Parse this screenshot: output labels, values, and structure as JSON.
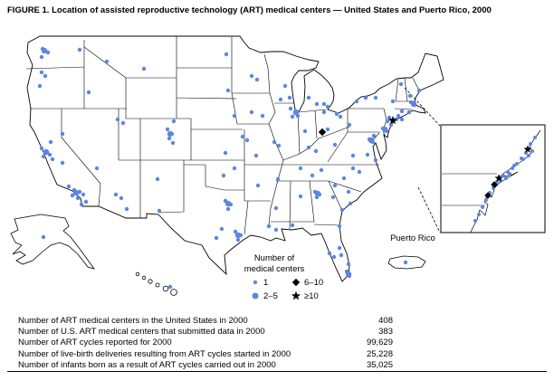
{
  "figure": {
    "title": "FIGURE 1. Location of assisted reproductive technology (ART) medical centers — United States and Puerto Rico, 2000"
  },
  "map": {
    "puerto_rico_label": "Puerto Rico",
    "marker_color": "#5b87e1",
    "symbol_color": "#000000",
    "legend": {
      "title_line1": "Number of",
      "title_line2": "medical centers",
      "items": [
        {
          "symbol": "dot-small",
          "label": "1"
        },
        {
          "symbol": "dot-large",
          "label": "2–5"
        },
        {
          "symbol": "diamond",
          "label": "6–10"
        },
        {
          "symbol": "star",
          "label": "≥10"
        }
      ]
    },
    "markers": {
      "dots": [
        [
          47,
          54
        ],
        [
          53,
          58
        ],
        [
          46,
          63
        ],
        [
          88,
          55
        ],
        [
          46,
          80
        ],
        [
          50,
          84
        ],
        [
          44,
          95
        ],
        [
          98,
          102
        ],
        [
          118,
          68
        ],
        [
          159,
          76
        ],
        [
          46,
          164
        ],
        [
          52,
          168
        ],
        [
          48,
          173
        ],
        [
          55,
          171
        ],
        [
          58,
          176
        ],
        [
          56,
          157
        ],
        [
          69,
          148
        ],
        [
          69,
          180
        ],
        [
          76,
          206
        ],
        [
          82,
          210
        ],
        [
          88,
          212
        ],
        [
          80,
          216
        ],
        [
          86,
          219
        ],
        [
          92,
          215
        ],
        [
          90,
          226
        ],
        [
          95,
          223
        ],
        [
          107,
          186
        ],
        [
          128,
          215
        ],
        [
          134,
          219
        ],
        [
          140,
          231
        ],
        [
          130,
          132
        ],
        [
          136,
          136
        ],
        [
          185,
          143
        ],
        [
          190,
          148
        ],
        [
          187,
          153
        ],
        [
          191,
          158
        ],
        [
          174,
          198
        ],
        [
          176,
          233
        ],
        [
          192,
          134
        ],
        [
          250,
          60
        ],
        [
          252,
          100
        ],
        [
          259,
          128
        ],
        [
          278,
          84
        ],
        [
          284,
          88
        ],
        [
          278,
          124
        ],
        [
          290,
          128
        ],
        [
          268,
          151
        ],
        [
          273,
          155
        ],
        [
          303,
          157
        ],
        [
          308,
          161
        ],
        [
          283,
          172
        ],
        [
          249,
          169
        ],
        [
          247,
          194
        ],
        [
          259,
          186
        ],
        [
          249,
          222
        ],
        [
          255,
          226
        ],
        [
          252,
          231
        ],
        [
          245,
          253
        ],
        [
          239,
          263
        ],
        [
          260,
          256
        ],
        [
          266,
          260
        ],
        [
          263,
          265
        ],
        [
          285,
          205
        ],
        [
          297,
          250
        ],
        [
          305,
          254
        ],
        [
          305,
          230
        ],
        [
          332,
          217
        ],
        [
          323,
          249
        ],
        [
          307,
          198
        ],
        [
          332,
          186
        ],
        [
          345,
          194
        ],
        [
          355,
          188
        ],
        [
          341,
          163
        ],
        [
          349,
          167
        ],
        [
          310,
          110
        ],
        [
          320,
          108
        ],
        [
          315,
          95
        ],
        [
          321,
          120
        ],
        [
          326,
          125
        ],
        [
          323,
          129
        ],
        [
          329,
          128
        ],
        [
          337,
          145
        ],
        [
          341,
          108
        ],
        [
          350,
          115
        ],
        [
          358,
          115
        ],
        [
          362,
          118
        ],
        [
          358,
          124
        ],
        [
          372,
          126
        ],
        [
          376,
          129
        ],
        [
          362,
          143
        ],
        [
          386,
          138
        ],
        [
          423,
          142
        ],
        [
          427,
          145
        ],
        [
          394,
          112
        ],
        [
          404,
          108
        ],
        [
          415,
          108
        ],
        [
          434,
          112
        ],
        [
          430,
          130
        ],
        [
          438,
          132
        ],
        [
          428,
          134
        ],
        [
          432,
          138
        ],
        [
          444,
          132
        ],
        [
          413,
          150
        ],
        [
          408,
          154
        ],
        [
          412,
          157
        ],
        [
          406,
          171
        ],
        [
          415,
          177
        ],
        [
          390,
          172
        ],
        [
          370,
          160
        ],
        [
          397,
          190
        ],
        [
          380,
          197
        ],
        [
          390,
          186
        ],
        [
          370,
          205
        ],
        [
          385,
          212
        ],
        [
          387,
          225
        ],
        [
          348,
          212
        ],
        [
          353,
          215
        ],
        [
          350,
          218
        ],
        [
          368,
          218
        ],
        [
          378,
          232
        ],
        [
          375,
          250
        ],
        [
          375,
          274
        ],
        [
          364,
          280
        ],
        [
          369,
          284
        ],
        [
          383,
          300
        ],
        [
          386,
          305
        ],
        [
          385,
          292
        ],
        [
          377,
          282
        ],
        [
          454,
          113
        ],
        [
          458,
          116
        ],
        [
          444,
          123
        ],
        [
          452,
          124
        ],
        [
          440,
          128
        ],
        [
          463,
          100
        ],
        [
          443,
          93
        ],
        [
          453,
          106
        ],
        [
          48,
          262
        ],
        [
          188,
          317
        ],
        [
          448,
          290
        ]
      ],
      "large_dots": [
        [
          84,
          213
        ],
        [
          51,
          168
        ],
        [
          327,
          124
        ],
        [
          252,
          225
        ],
        [
          263,
          260
        ],
        [
          351,
          214
        ],
        [
          410,
          155
        ],
        [
          425,
          143
        ],
        [
          457,
          115
        ],
        [
          49,
          56
        ],
        [
          188,
          148
        ],
        [
          385,
          303
        ]
      ],
      "diamonds": [
        [
          356,
          146
        ]
      ],
      "stars": [
        [
          434,
          133
        ]
      ]
    },
    "inset": {
      "dots": [
        [
          591,
          152
        ],
        [
          586,
          159
        ],
        [
          581,
          169
        ],
        [
          576,
          175
        ],
        [
          571,
          181
        ],
        [
          566,
          186
        ],
        [
          561,
          190
        ],
        [
          556,
          194
        ],
        [
          549,
          201
        ],
        [
          545,
          208
        ],
        [
          541,
          213
        ],
        [
          537,
          221
        ],
        [
          533,
          229
        ],
        [
          529,
          237
        ],
        [
          525,
          244
        ],
        [
          559,
          197
        ],
        [
          563,
          192
        ],
        [
          588,
          167
        ],
        [
          584,
          172
        ],
        [
          578,
          176
        ],
        [
          568,
          183
        ],
        [
          553,
          199
        ]
      ],
      "diamonds": [
        [
          546,
          204
        ],
        [
          539,
          216
        ]
      ],
      "stars": [
        [
          583,
          165
        ],
        [
          551,
          197
        ]
      ]
    }
  },
  "stats": {
    "rows": [
      {
        "label": "Number of ART medical centers in the United States in 2000",
        "value": "408"
      },
      {
        "label": "Number of U.S. ART medical centers that submitted data in 2000",
        "value": "383"
      },
      {
        "label": "Number of ART cycles reported for 2000",
        "value": "99,629"
      },
      {
        "label": "Number of live-birth deliveries resulting from ART cycles started in 2000",
        "value": "25,228"
      },
      {
        "label": "Number of infants born as a result of ART cycles carried out in 2000",
        "value": "35,025"
      }
    ]
  }
}
